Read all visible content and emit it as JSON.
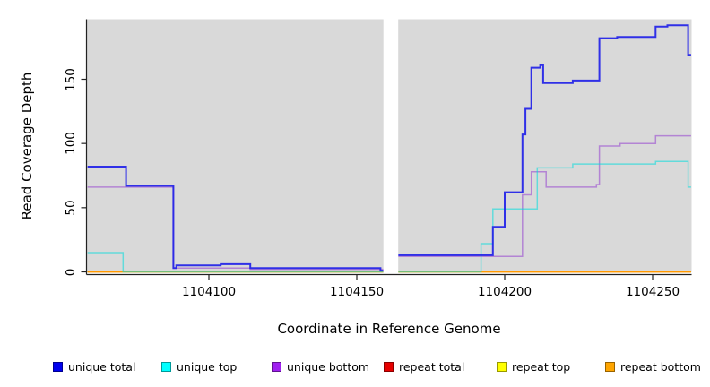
{
  "figure": {
    "background": "#FFFFFF",
    "panel_background": "#D9D9D9",
    "axis_color": "#222222",
    "gap_band_color": "#FFFFFF"
  },
  "labels": {
    "x_axis": "Coordinate in Reference Genome",
    "y_axis": "Read Coverage Depth"
  },
  "axes": {
    "x_ticks": [
      {
        "label": "1104100",
        "value": 1104100
      },
      {
        "label": "1104150",
        "value": 1104150
      },
      {
        "label": "1104200",
        "value": 1104200
      },
      {
        "label": "1104250",
        "value": 1104250
      }
    ],
    "y_ticks": [
      {
        "label": "0",
        "value": 0
      },
      {
        "label": "50",
        "value": 50
      },
      {
        "label": "100",
        "value": 100
      },
      {
        "label": "150",
        "value": 150
      }
    ]
  },
  "legend": {
    "items": [
      {
        "label": "unique total",
        "color": "#0000EE"
      },
      {
        "label": "unique top",
        "color": "#00FFFF"
      },
      {
        "label": "unique bottom",
        "color": "#A020F0"
      },
      {
        "label": "repeat total",
        "color": "#E60000"
      },
      {
        "label": "repeat top",
        "color": "#FFFF00"
      },
      {
        "label": "repeat bottom",
        "color": "#FFA500"
      }
    ]
  },
  "chart_data": {
    "type": "line",
    "step": true,
    "title": "",
    "xlabel": "Coordinate in Reference Genome",
    "ylabel": "Read Coverage Depth",
    "xlim": [
      1104059,
      1104263
    ],
    "ylim": [
      0,
      196
    ],
    "no_data_gap_x": [
      1104159,
      1104164
    ],
    "grid": false,
    "legend_position": "bottom",
    "series": [
      {
        "name": "repeat total",
        "color": "#E60000",
        "opacity": 1,
        "width": 1.2,
        "segments": [
          {
            "points": [
              [
                1104059,
                0
              ]
            ],
            "end": 1104159
          },
          {
            "points": [
              [
                1104164,
                0
              ]
            ],
            "end": 1104263
          }
        ]
      },
      {
        "name": "repeat top",
        "color": "#FFFF00",
        "opacity": 1,
        "width": 1.2,
        "segments": [
          {
            "points": [
              [
                1104059,
                0
              ]
            ],
            "end": 1104159
          },
          {
            "points": [
              [
                1104164,
                0
              ]
            ],
            "end": 1104263
          }
        ]
      },
      {
        "name": "repeat bottom",
        "color": "#FF9900",
        "opacity": 1,
        "width": 1.8,
        "segments": [
          {
            "points": [
              [
                1104059,
                0
              ]
            ],
            "end": 1104159
          },
          {
            "points": [
              [
                1104164,
                0
              ]
            ],
            "end": 1104263
          }
        ]
      },
      {
        "name": "unique bottom",
        "color": "#9B4FD0",
        "opacity": 0.62,
        "width": 1.5,
        "segments": [
          {
            "points": [
              [
                1104059,
                66
              ],
              [
                1104088,
                3
              ],
              [
                1104114,
                2
              ]
            ],
            "end": 1104159
          },
          {
            "points": [
              [
                1104164,
                12
              ],
              [
                1104206,
                60
              ],
              [
                1104209,
                78
              ],
              [
                1104214,
                66
              ],
              [
                1104231,
                68
              ],
              [
                1104232,
                98
              ],
              [
                1104239,
                100
              ],
              [
                1104251,
                106
              ]
            ],
            "end": 1104263
          }
        ]
      },
      {
        "name": "unique top",
        "color": "#00DDDD",
        "opacity": 0.55,
        "width": 1.5,
        "segments": [
          {
            "points": [
              [
                1104059,
                15
              ],
              [
                1104071,
                0
              ]
            ],
            "end": 1104159
          },
          {
            "points": [
              [
                1104164,
                0
              ],
              [
                1104192,
                22
              ],
              [
                1104196,
                49
              ],
              [
                1104211,
                81
              ],
              [
                1104223,
                84
              ],
              [
                1104251,
                86
              ],
              [
                1104262,
                66
              ]
            ],
            "end": 1104263
          }
        ]
      },
      {
        "name": "unique total",
        "color": "#2222E8",
        "opacity": 0.92,
        "width": 2,
        "segments": [
          {
            "points": [
              [
                1104059,
                82
              ],
              [
                1104072,
                67
              ],
              [
                1104088,
                3
              ],
              [
                1104089,
                5
              ],
              [
                1104104,
                6
              ],
              [
                1104114,
                3
              ],
              [
                1104158,
                1
              ]
            ],
            "end": 1104159
          },
          {
            "points": [
              [
                1104164,
                13
              ],
              [
                1104196,
                35
              ],
              [
                1104200,
                62
              ],
              [
                1104206,
                107
              ],
              [
                1104207,
                127
              ],
              [
                1104209,
                159
              ],
              [
                1104212,
                161
              ],
              [
                1104213,
                147
              ],
              [
                1104223,
                149
              ],
              [
                1104232,
                182
              ],
              [
                1104238,
                183
              ],
              [
                1104251,
                191
              ],
              [
                1104255,
                192
              ],
              [
                1104262,
                169
              ]
            ],
            "end": 1104263
          }
        ]
      }
    ]
  }
}
